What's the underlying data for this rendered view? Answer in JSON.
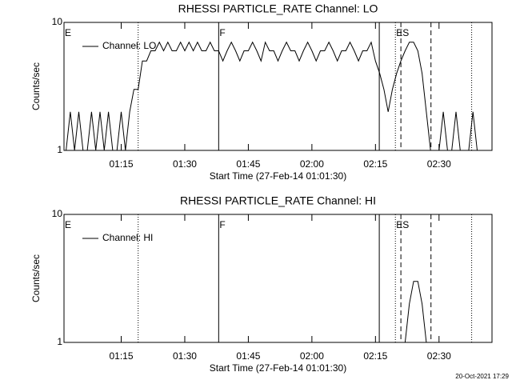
{
  "chart_data": [
    {
      "type": "line",
      "title": "RHESSI PARTICLE_RATE Channel: LO",
      "xlabel": "Start Time (27-Feb-14 01:01:30)",
      "ylabel": "Counts/sec",
      "log_y": true,
      "xlim": [
        1.5,
        102.5
      ],
      "ylim": [
        1,
        10
      ],
      "yticks": [
        1,
        10
      ],
      "xticks": [
        {
          "value": 15,
          "label": "01:15"
        },
        {
          "value": 30,
          "label": "01:30"
        },
        {
          "value": 45,
          "label": "01:45"
        },
        {
          "value": 60,
          "label": "02:00"
        },
        {
          "value": 75,
          "label": "02:15"
        },
        {
          "value": 90,
          "label": "02:30"
        }
      ],
      "vlines": [
        {
          "x": 19,
          "style": "dotted"
        },
        {
          "x": 38,
          "style": "solid"
        },
        {
          "x": 75.9,
          "style": "solid"
        },
        {
          "x": 79.7,
          "style": "dotted"
        },
        {
          "x": 81,
          "style": "dashed"
        },
        {
          "x": 88.1,
          "style": "dashed"
        },
        {
          "x": 97.7,
          "style": "dotted"
        }
      ],
      "annotations": [
        {
          "text": "E",
          "x": 1.5
        },
        {
          "text": "F",
          "x": 38
        },
        {
          "text": "ES",
          "x": 79.7
        }
      ],
      "x": [
        2,
        3,
        4,
        5,
        6,
        7,
        8,
        9,
        10,
        11,
        12,
        13,
        14,
        15,
        16,
        17,
        18,
        19,
        20,
        21,
        22,
        23,
        24,
        25,
        26,
        27,
        28,
        29,
        30,
        31,
        32,
        33,
        34,
        35,
        36,
        37,
        38,
        39,
        40,
        41,
        42,
        43,
        44,
        45,
        46,
        47,
        48,
        49,
        50,
        51,
        52,
        53,
        54,
        55,
        56,
        57,
        58,
        59,
        60,
        61,
        62,
        63,
        64,
        65,
        66,
        67,
        68,
        69,
        70,
        71,
        72,
        73,
        74,
        75,
        76,
        77,
        78,
        79,
        80,
        81,
        82,
        83,
        84,
        85,
        86,
        87,
        88,
        89,
        90,
        91,
        92,
        93,
        94,
        95,
        96,
        97,
        98,
        99,
        100,
        101
      ],
      "series": [
        {
          "name": "Channel: LO",
          "color": "#000000",
          "values": [
            1,
            2,
            1,
            2,
            1,
            1,
            2,
            1,
            2,
            1,
            2,
            1,
            1,
            2,
            1,
            2,
            3,
            3,
            5,
            5,
            6,
            6,
            7,
            6,
            7,
            6,
            6,
            7,
            6,
            7,
            6,
            7,
            6,
            6,
            7,
            6,
            6,
            5,
            6,
            7,
            6,
            5,
            6,
            6,
            7,
            6,
            5,
            7,
            6,
            6,
            5,
            6,
            7,
            6,
            6,
            5,
            6,
            7,
            6,
            5,
            6,
            6,
            7,
            6,
            5,
            6,
            6,
            7,
            6,
            5,
            6,
            6,
            7,
            5,
            4,
            3,
            2,
            3,
            4,
            5,
            6,
            7,
            7,
            6,
            4,
            2,
            1,
            1,
            1,
            2,
            1,
            1,
            2,
            1,
            1,
            1,
            2,
            1,
            1,
            1
          ]
        }
      ]
    },
    {
      "type": "line",
      "title": "RHESSI PARTICLE_RATE Channel: HI",
      "xlabel": "Start Time (27-Feb-14 01:01:30)",
      "ylabel": "Counts/sec",
      "log_y": true,
      "xlim": [
        1.5,
        102.5
      ],
      "ylim": [
        1,
        10
      ],
      "yticks": [
        1,
        10
      ],
      "xticks": [
        {
          "value": 15,
          "label": "01:15"
        },
        {
          "value": 30,
          "label": "01:30"
        },
        {
          "value": 45,
          "label": "01:45"
        },
        {
          "value": 60,
          "label": "02:00"
        },
        {
          "value": 75,
          "label": "02:15"
        },
        {
          "value": 90,
          "label": "02:30"
        }
      ],
      "vlines": [
        {
          "x": 19,
          "style": "dotted"
        },
        {
          "x": 38,
          "style": "solid"
        },
        {
          "x": 75.9,
          "style": "solid"
        },
        {
          "x": 79.7,
          "style": "dotted"
        },
        {
          "x": 81,
          "style": "dashed"
        },
        {
          "x": 88.1,
          "style": "dashed"
        },
        {
          "x": 97.7,
          "style": "dotted"
        }
      ],
      "annotations": [
        {
          "text": "E",
          "x": 1.5
        },
        {
          "text": "F",
          "x": 38
        },
        {
          "text": "ES",
          "x": 79.7
        }
      ],
      "x": [
        2,
        3,
        4,
        5,
        6,
        7,
        8,
        9,
        10,
        11,
        12,
        13,
        14,
        15,
        16,
        17,
        18,
        19,
        20,
        21,
        22,
        23,
        24,
        25,
        26,
        27,
        28,
        29,
        30,
        31,
        32,
        33,
        34,
        35,
        36,
        37,
        38,
        39,
        40,
        41,
        42,
        43,
        44,
        45,
        46,
        47,
        48,
        49,
        50,
        51,
        52,
        53,
        54,
        55,
        56,
        57,
        58,
        59,
        60,
        61,
        62,
        63,
        64,
        65,
        66,
        67,
        68,
        69,
        70,
        71,
        72,
        73,
        74,
        75,
        76,
        77,
        78,
        79,
        80,
        81,
        82,
        83,
        84,
        85,
        86,
        87,
        88,
        89,
        90,
        91,
        92,
        93,
        94,
        95,
        96,
        97,
        98,
        99,
        100,
        101
      ],
      "series": [
        {
          "name": "Channel: HI",
          "color": "#000000",
          "values": [
            1,
            1,
            1,
            1,
            1,
            1,
            1,
            1,
            1,
            1,
            1,
            1,
            1,
            1,
            1,
            1,
            1,
            1,
            1,
            1,
            1,
            1,
            1,
            1,
            1,
            1,
            1,
            1,
            1,
            1,
            1,
            1,
            1,
            1,
            1,
            1,
            1,
            1,
            1,
            1,
            1,
            1,
            1,
            1,
            1,
            1,
            1,
            1,
            1,
            1,
            1,
            1,
            1,
            1,
            1,
            1,
            1,
            1,
            1,
            1,
            1,
            1,
            1,
            1,
            1,
            1,
            1,
            1,
            1,
            1,
            1,
            1,
            1,
            1,
            1,
            1,
            1,
            1,
            1,
            1,
            1,
            2,
            3,
            3,
            2,
            1,
            1,
            1,
            1,
            1,
            1,
            1,
            1,
            1,
            1,
            1,
            1,
            1,
            1,
            1
          ]
        }
      ]
    }
  ],
  "footer": "20-Oct-2021 17:29"
}
